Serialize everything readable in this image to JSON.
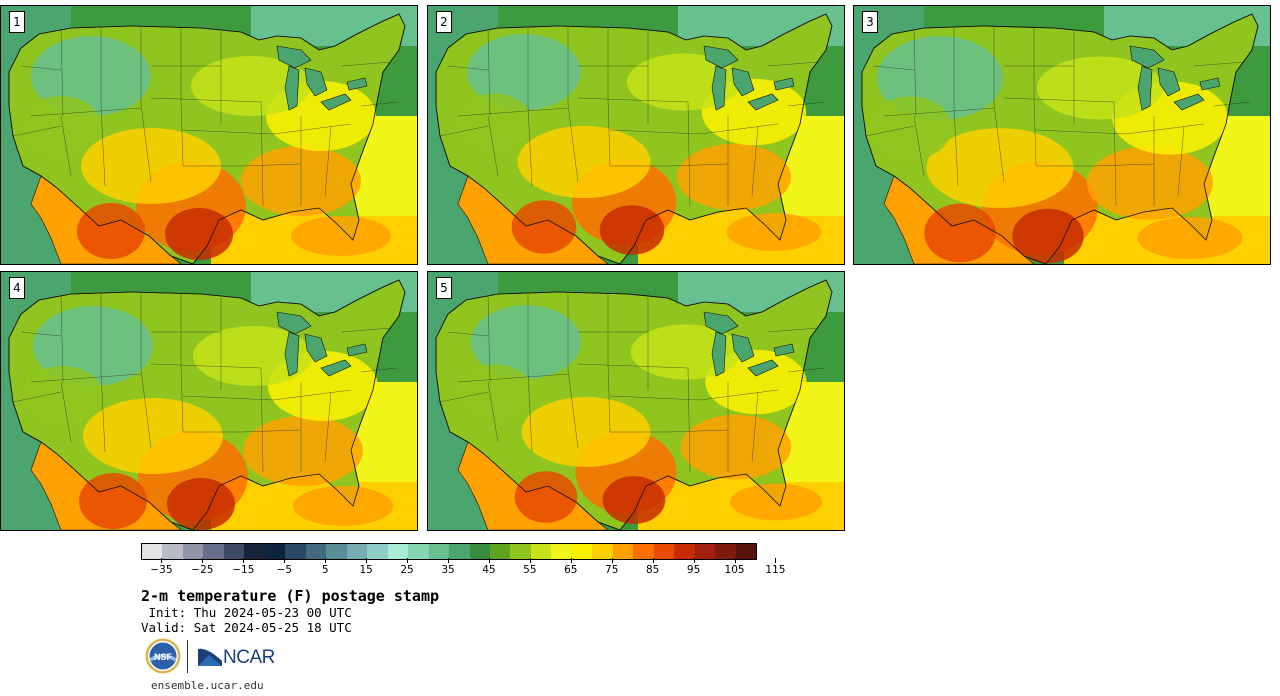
{
  "title": "2-m temperature (F) postage stamp",
  "init": " Init: Thu 2024-05-23 00 UTC",
  "valid": "Valid: Sat 2024-05-25 18 UTC",
  "site": "ensemble.ucar.edu",
  "logos": {
    "nsf": "NSF",
    "ncar": "NCAR"
  },
  "members": [
    {
      "label": "1"
    },
    {
      "label": "2"
    },
    {
      "label": "3"
    },
    {
      "label": "4"
    },
    {
      "label": "5"
    }
  ],
  "colorbar": {
    "min": -40,
    "max": 120,
    "step": 5,
    "tick_labels": [
      "−35",
      "−25",
      "−15",
      "−5",
      "5",
      "15",
      "25",
      "35",
      "45",
      "55",
      "65",
      "75",
      "85",
      "95",
      "105",
      "115"
    ],
    "colors": [
      "#e4e4e4",
      "#b9bcc4",
      "#8f96a6",
      "#66708a",
      "#3e4a66",
      "#1a2438",
      "#0f2340",
      "#2a4766",
      "#416a80",
      "#5a8c97",
      "#76adb0",
      "#90cdc6",
      "#a7ebd9",
      "#86d7b0",
      "#67c08f",
      "#4aa56e",
      "#378d3f",
      "#5ea421",
      "#90c51f",
      "#c6e31a",
      "#f2f51a",
      "#fff200",
      "#ffd000",
      "#ffa100",
      "#ff6f00",
      "#e74a00",
      "#c72b00",
      "#a21f0e",
      "#7c1a10",
      "#55150c"
    ]
  }
}
